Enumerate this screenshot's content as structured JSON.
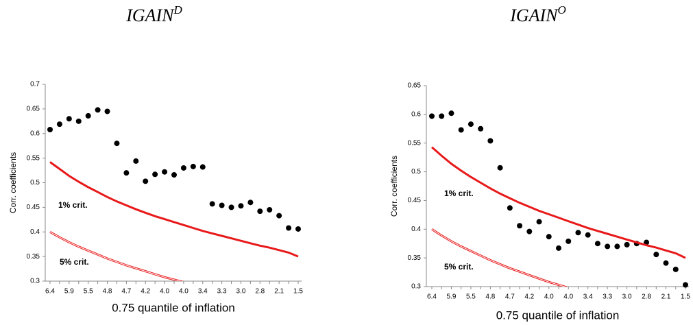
{
  "chart_data": [
    {
      "type": "scatter",
      "title": "IGAIN",
      "title_superscript": "D",
      "x_label": "0.75 quantile of inflation",
      "y_label": "Corr. coefficients",
      "categories": [
        "6.4",
        null,
        "5.9",
        null,
        "5.5",
        null,
        "4.8",
        null,
        "4.7",
        null,
        "4.2",
        null,
        "4.0",
        null,
        "4.0",
        null,
        "3.4",
        null,
        "3.3",
        null,
        "3.0",
        null,
        "2.8",
        null,
        "2.1",
        null,
        "1.5"
      ],
      "ylim": [
        0.3,
        0.7
      ],
      "yticks": [
        0.3,
        0.35,
        0.4,
        0.45,
        0.5,
        0.55,
        0.6,
        0.65,
        0.7
      ],
      "series": [
        {
          "name": "IGAIN",
          "color": "#000000",
          "values": [
            0.608,
            0.619,
            0.63,
            0.625,
            0.636,
            0.648,
            0.645,
            0.58,
            0.52,
            0.544,
            0.503,
            0.517,
            0.522,
            0.516,
            0.53,
            0.533,
            0.532,
            0.457,
            0.454,
            0.45,
            0.453,
            0.46,
            0.442,
            0.445,
            0.433,
            0.408,
            0.406
          ]
        },
        {
          "name": "1% crit.",
          "color": "#e8191a",
          "values": [
            0.542,
            0.528,
            0.514,
            0.502,
            0.491,
            0.481,
            0.471,
            0.462,
            0.454,
            0.446,
            0.439,
            0.432,
            0.426,
            0.42,
            0.414,
            0.408,
            0.402,
            0.397,
            0.392,
            0.387,
            0.382,
            0.377,
            0.372,
            0.368,
            0.363,
            0.358,
            0.35
          ]
        },
        {
          "name": "5% crit.",
          "color": "#e8191a",
          "values": [
            0.4,
            0.389,
            0.379,
            0.37,
            0.362,
            0.354,
            0.346,
            0.339,
            0.332,
            0.326,
            0.32,
            0.314,
            0.308,
            0.303,
            0.298,
            null,
            null,
            null,
            null,
            null,
            null,
            null,
            null,
            null,
            null,
            null,
            null
          ]
        }
      ]
    },
    {
      "type": "scatter",
      "title": "IGAIN",
      "title_superscript": "O",
      "x_label": "0.75 quantile of inflation",
      "y_label": "Corr. coefficients",
      "categories": [
        "6.4",
        null,
        "5.9",
        null,
        "5.5",
        null,
        "4.8",
        null,
        "4.7",
        null,
        "4.2",
        null,
        "4.0",
        null,
        "4.0",
        null,
        "3.4",
        null,
        "3.3",
        null,
        "3.0",
        null,
        "2.8",
        null,
        "2.1",
        null,
        "1.5"
      ],
      "ylim": [
        0.3,
        0.65
      ],
      "yticks": [
        0.3,
        0.35,
        0.4,
        0.45,
        0.5,
        0.55,
        0.6,
        0.65
      ],
      "series": [
        {
          "name": "IGAIN",
          "color": "#000000",
          "values": [
            0.597,
            0.597,
            0.602,
            0.573,
            0.583,
            0.575,
            0.554,
            0.507,
            0.437,
            0.406,
            0.396,
            0.413,
            0.387,
            0.367,
            0.379,
            0.394,
            0.39,
            0.375,
            0.37,
            0.37,
            0.373,
            0.375,
            0.377,
            0.356,
            0.341,
            0.33,
            0.303
          ]
        },
        {
          "name": "1% crit.",
          "color": "#e8191a",
          "values": [
            0.543,
            0.528,
            0.514,
            0.502,
            0.491,
            0.481,
            0.471,
            0.462,
            0.454,
            0.446,
            0.439,
            0.432,
            0.426,
            0.42,
            0.414,
            0.408,
            0.402,
            0.397,
            0.392,
            0.387,
            0.382,
            0.377,
            0.372,
            0.368,
            0.363,
            0.358,
            0.35
          ]
        },
        {
          "name": "5% crit.",
          "color": "#e8191a",
          "values": [
            0.4,
            0.389,
            0.379,
            0.37,
            0.362,
            0.354,
            0.346,
            0.339,
            0.332,
            0.326,
            0.32,
            0.314,
            0.308,
            0.303,
            0.298,
            null,
            null,
            null,
            null,
            null,
            null,
            null,
            null,
            null,
            null,
            null,
            null
          ]
        }
      ]
    }
  ]
}
